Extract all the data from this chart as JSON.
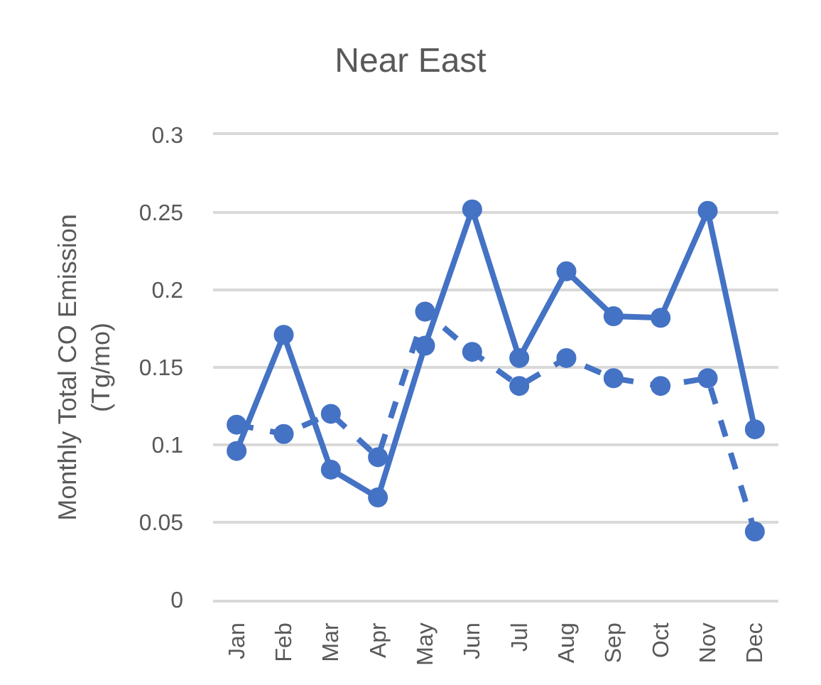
{
  "chart_data": {
    "type": "line",
    "title": "Near East",
    "ylabel": "Monthly Total CO Emission\n(Tg/mo)",
    "categories": [
      "Jan",
      "Feb",
      "Mar",
      "Apr",
      "May",
      "Jun",
      "Jul",
      "Aug",
      "Sep",
      "Oct",
      "Nov",
      "Dec"
    ],
    "series": [
      {
        "color": "#4472c4",
        "line_style": "solid",
        "values": [
          0.096,
          0.171,
          0.084,
          0.066,
          0.164,
          0.252,
          0.156,
          0.212,
          0.183,
          0.182,
          0.251,
          0.11
        ]
      },
      {
        "color": "#4472c4",
        "line_style": "dashed",
        "values": [
          0.113,
          0.107,
          0.12,
          0.092,
          0.186,
          0.16,
          0.138,
          0.156,
          0.143,
          0.138,
          0.143,
          0.044
        ]
      }
    ],
    "ylim": [
      0,
      0.3
    ],
    "yticks": [
      0,
      0.05,
      0.1,
      0.15,
      0.2,
      0.25,
      0.3
    ],
    "grid": "y",
    "marker": "circle"
  }
}
